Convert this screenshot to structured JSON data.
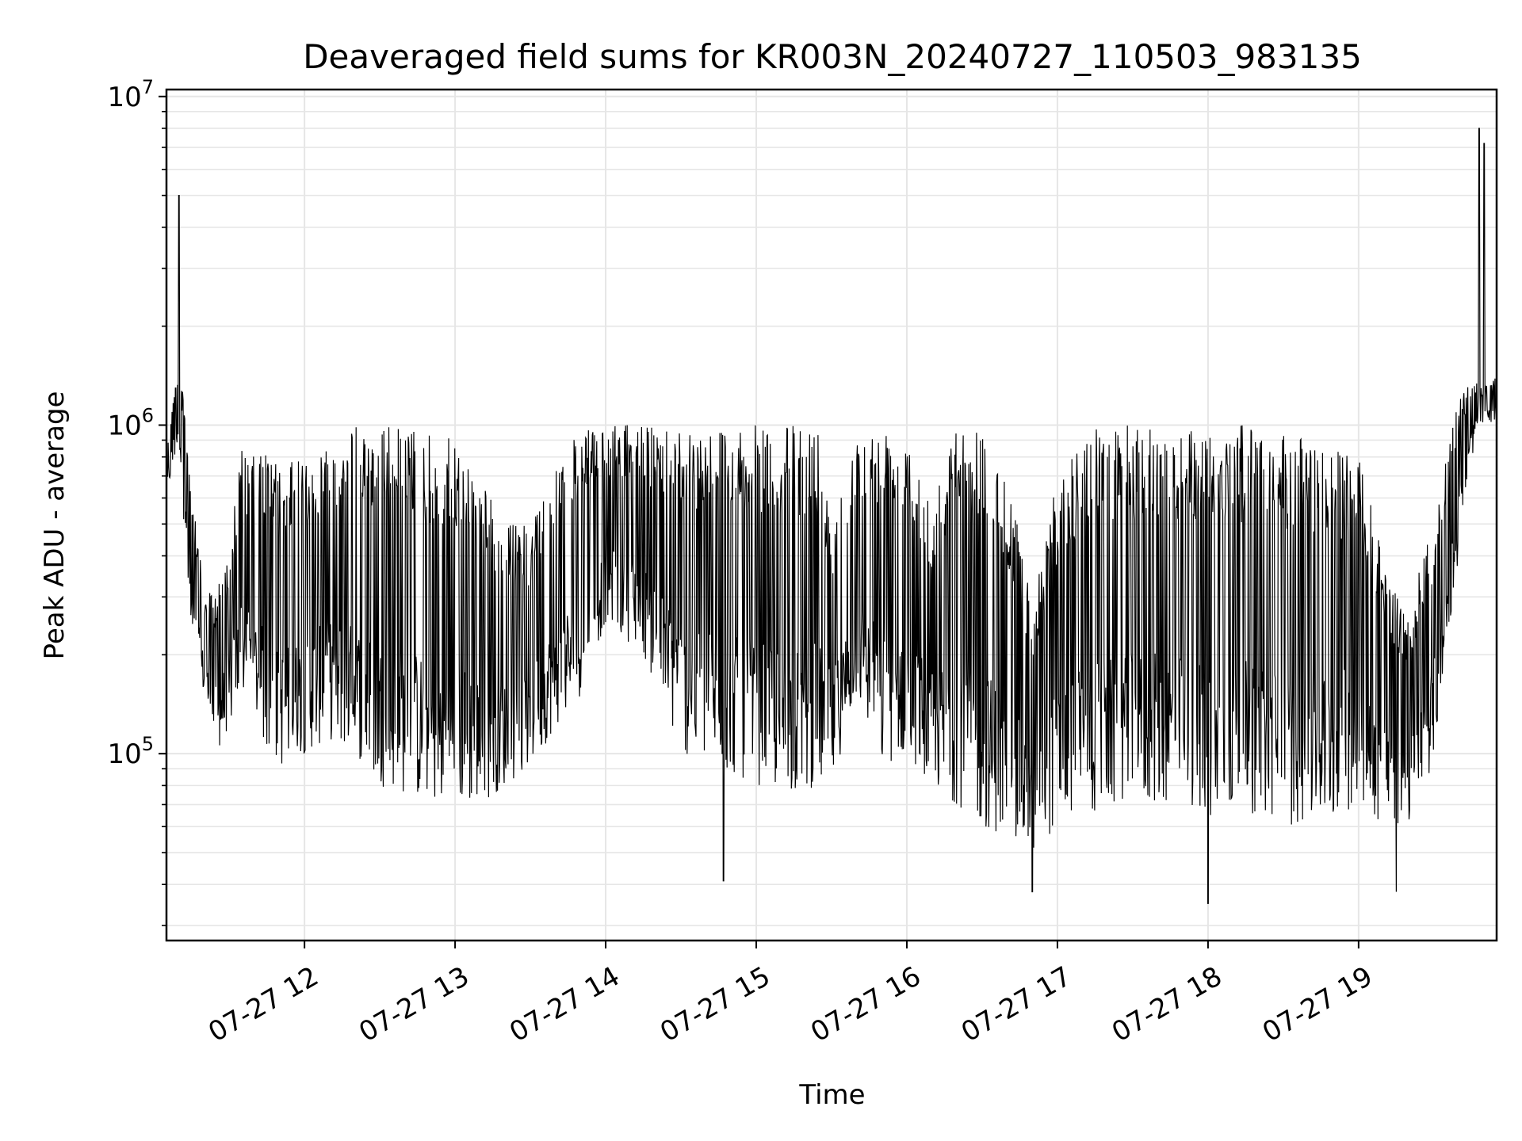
{
  "chart_data": {
    "type": "line",
    "title": "Deaveraged field sums for KR003N_20240727_110503_983135",
    "xlabel": "Time",
    "ylabel": "Peak ADU - average",
    "yscale": "log",
    "ylim": [
      27000,
      10500000
    ],
    "xlim": [
      "2024-07-27 11:05",
      "2024-07-27 19:55"
    ],
    "grid": true,
    "line_color": "#000000",
    "grid_color": "#e6e6e6",
    "x_ticks": [
      {
        "label": "07-27 12",
        "time": "2024-07-27 12:00"
      },
      {
        "label": "07-27 13",
        "time": "2024-07-27 13:00"
      },
      {
        "label": "07-27 14",
        "time": "2024-07-27 14:00"
      },
      {
        "label": "07-27 15",
        "time": "2024-07-27 15:00"
      },
      {
        "label": "07-27 16",
        "time": "2024-07-27 16:00"
      },
      {
        "label": "07-27 17",
        "time": "2024-07-27 17:00"
      },
      {
        "label": "07-27 18",
        "time": "2024-07-27 18:00"
      },
      {
        "label": "07-27 19",
        "time": "2024-07-27 19:00"
      }
    ],
    "y_ticks": [
      {
        "base": "10",
        "exp": "5",
        "value": 100000
      },
      {
        "base": "10",
        "exp": "6",
        "value": 1000000
      },
      {
        "base": "10",
        "exp": "7",
        "value": 10000000
      }
    ],
    "series": [
      {
        "x": [
          "2024-07-27 11:05",
          "2024-07-27 11:10",
          "2024-07-27 11:15",
          "2024-07-27 11:20",
          "2024-07-27 11:25",
          "2024-07-27 11:30",
          "2024-07-27 11:35",
          "2024-07-27 11:40",
          "2024-07-27 11:45",
          "2024-07-27 11:50",
          "2024-07-27 12:00",
          "2024-07-27 12:10",
          "2024-07-27 12:20",
          "2024-07-27 12:30",
          "2024-07-27 12:40",
          "2024-07-27 12:50",
          "2024-07-27 13:00",
          "2024-07-27 13:10",
          "2024-07-27 13:20",
          "2024-07-27 13:30",
          "2024-07-27 13:40",
          "2024-07-27 13:50",
          "2024-07-27 14:00",
          "2024-07-27 14:15",
          "2024-07-27 14:30",
          "2024-07-27 14:45",
          "2024-07-27 15:00",
          "2024-07-27 15:15",
          "2024-07-27 15:25",
          "2024-07-27 15:30",
          "2024-07-27 15:40",
          "2024-07-27 15:50",
          "2024-07-27 16:00",
          "2024-07-27 16:10",
          "2024-07-27 16:20",
          "2024-07-27 16:30",
          "2024-07-27 16:40",
          "2024-07-27 16:50",
          "2024-07-27 17:00",
          "2024-07-27 17:15",
          "2024-07-27 17:30",
          "2024-07-27 17:45",
          "2024-07-27 18:00",
          "2024-07-27 18:15",
          "2024-07-27 18:30",
          "2024-07-27 18:45",
          "2024-07-27 19:00",
          "2024-07-27 19:10",
          "2024-07-27 19:20",
          "2024-07-27 19:25",
          "2024-07-27 19:30",
          "2024-07-27 19:35",
          "2024-07-27 19:40",
          "2024-07-27 19:45",
          "2024-07-27 19:50",
          "2024-07-27 19:55"
        ],
        "upper": [
          900000,
          1600000,
          700000,
          300000,
          320000,
          450000,
          850000,
          800000,
          850000,
          750000,
          800000,
          900000,
          1000000,
          1000000,
          1000000,
          950000,
          900000,
          700000,
          500000,
          500000,
          800000,
          950000,
          1000000,
          1000000,
          1000000,
          1000000,
          1000000,
          1000000,
          1000000,
          550000,
          900000,
          1000000,
          1000000,
          600000,
          1000000,
          1000000,
          700000,
          300000,
          700000,
          1000000,
          1000000,
          1000000,
          1000000,
          1000000,
          950000,
          900000,
          800000,
          400000,
          250000,
          400000,
          500000,
          800000,
          1200000,
          1400000,
          1300000,
          1400000
        ],
        "lower": [
          600000,
          900000,
          200000,
          150000,
          100000,
          120000,
          150000,
          130000,
          100000,
          90000,
          100000,
          110000,
          100000,
          80000,
          75000,
          70000,
          70000,
          70000,
          80000,
          90000,
          120000,
          150000,
          250000,
          200000,
          100000,
          90000,
          80000,
          75000,
          80000,
          80000,
          150000,
          90000,
          100000,
          80000,
          70000,
          60000,
          55000,
          50000,
          60000,
          65000,
          70000,
          70000,
          65000,
          65000,
          60000,
          60000,
          70000,
          60000,
          60000,
          70000,
          100000,
          200000,
          400000,
          800000,
          1000000,
          1000000
        ],
        "peaks": [
          [
            "2024-07-27 11:10",
            5000000
          ],
          [
            "2024-07-27 19:48",
            8000000
          ],
          [
            "2024-07-27 19:50",
            7200000
          ]
        ],
        "dips": [
          [
            "2024-07-27 14:47",
            41000
          ],
          [
            "2024-07-27 16:50",
            38000
          ],
          [
            "2024-07-27 18:00",
            35000
          ],
          [
            "2024-07-27 19:15",
            38000
          ]
        ]
      }
    ]
  }
}
